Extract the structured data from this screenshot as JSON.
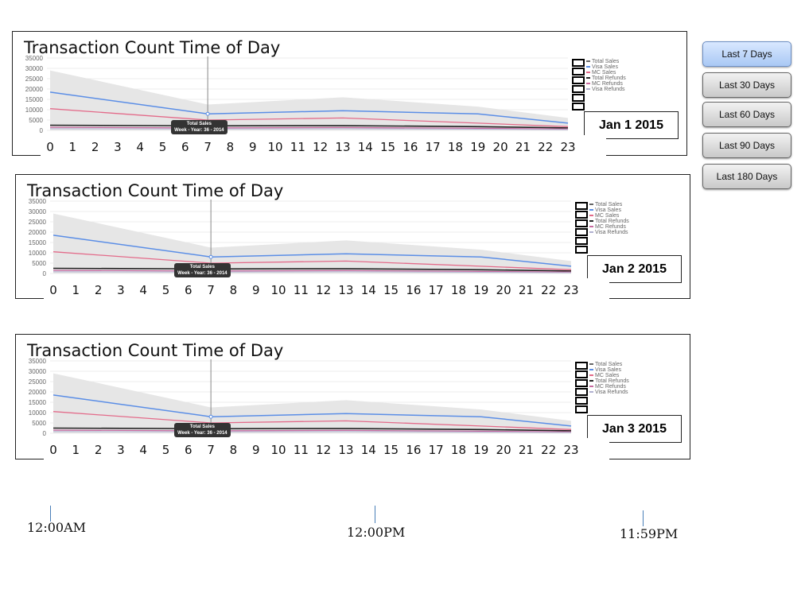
{
  "sidebar": {
    "buttons": [
      {
        "label": "Last 7 Days",
        "active": true
      },
      {
        "label": "Last 30 Days",
        "active": false
      },
      {
        "label": "Last 60 Days",
        "active": false
      },
      {
        "label": "Last 90 Days",
        "active": false
      },
      {
        "label": "Last 180  Days",
        "active": false
      }
    ]
  },
  "time_markers": {
    "start": "12:00AM",
    "mid": "12:00PM",
    "end": "11:59PM"
  },
  "colors": {
    "band": "#e6e6e6",
    "visa_sales": "#5b8ee6",
    "mc_sales": "#e36b8a",
    "total_refunds": "#222222",
    "mc_refunds": "#c86aa0",
    "visa_refunds": "#b0b0d0",
    "accent_button": "#a9c8f4"
  },
  "chart_data": [
    {
      "type": "area",
      "title": "Transaction Count Time of Day",
      "date_label": "Jan 1 2015",
      "x": [
        0,
        7,
        13,
        19,
        23
      ],
      "x_tick_labels": [
        "0",
        "1",
        "2",
        "3",
        "4",
        "5",
        "6",
        "7",
        "8",
        "9",
        "10",
        "11",
        "12",
        "13",
        "14",
        "15",
        "16",
        "17",
        "18",
        "19",
        "20",
        "21",
        "22",
        "23"
      ],
      "y_tick_labels": [
        "0",
        "5000",
        "10000",
        "15000",
        "20000",
        "25000",
        "30000",
        "35000"
      ],
      "ylim": [
        0,
        35000
      ],
      "legend": [
        "Total Sales",
        "Visa Sales",
        "MC Sales",
        "Total Refunds",
        "MC Refunds",
        "Visa Refunds"
      ],
      "legend_position": "right",
      "tooltip": {
        "x": 7,
        "title": "Total Sales",
        "subtitle": "Week - Year: 36 - 2014"
      },
      "series": [
        {
          "name": "Total Sales",
          "values": [
            29000,
            12500,
            16000,
            11500,
            6000
          ]
        },
        {
          "name": "Visa Sales",
          "values": [
            18500,
            8000,
            9500,
            8000,
            3500
          ]
        },
        {
          "name": "MC Sales",
          "values": [
            10500,
            5000,
            6000,
            3500,
            1800
          ]
        },
        {
          "name": "Total Refunds",
          "values": [
            2500,
            2200,
            2300,
            1800,
            1200
          ]
        },
        {
          "name": "MC Refunds",
          "values": [
            1500,
            1200,
            1400,
            1000,
            700
          ]
        },
        {
          "name": "Visa Refunds",
          "values": [
            800,
            700,
            800,
            600,
            400
          ]
        }
      ]
    },
    {
      "type": "area",
      "title": "Transaction Count Time of Day",
      "date_label": "Jan 2 2015",
      "x": [
        0,
        7,
        13,
        19,
        23
      ],
      "x_tick_labels": [
        "0",
        "1",
        "2",
        "3",
        "4",
        "5",
        "6",
        "7",
        "8",
        "9",
        "10",
        "11",
        "12",
        "13",
        "14",
        "15",
        "16",
        "17",
        "18",
        "19",
        "20",
        "21",
        "22",
        "23"
      ],
      "y_tick_labels": [
        "0",
        "5000",
        "10000",
        "15000",
        "20000",
        "25000",
        "30000",
        "35000"
      ],
      "ylim": [
        0,
        35000
      ],
      "legend": [
        "Total Sales",
        "Visa Sales",
        "MC Sales",
        "Total Refunds",
        "MC Refunds",
        "Visa Refunds"
      ],
      "legend_position": "right",
      "tooltip": {
        "x": 7,
        "title": "Total Sales",
        "subtitle": "Week - Year: 36 - 2014"
      },
      "series": [
        {
          "name": "Total Sales",
          "values": [
            29000,
            12500,
            16000,
            11500,
            6000
          ]
        },
        {
          "name": "Visa Sales",
          "values": [
            18500,
            8000,
            9500,
            8000,
            3500
          ]
        },
        {
          "name": "MC Sales",
          "values": [
            10500,
            5000,
            6000,
            3500,
            1800
          ]
        },
        {
          "name": "Total Refunds",
          "values": [
            2500,
            2200,
            2300,
            1800,
            1200
          ]
        },
        {
          "name": "MC Refunds",
          "values": [
            1500,
            1200,
            1400,
            1000,
            700
          ]
        },
        {
          "name": "Visa Refunds",
          "values": [
            800,
            700,
            800,
            600,
            400
          ]
        }
      ]
    },
    {
      "type": "area",
      "title": "Transaction Count Time of Day",
      "date_label": "Jan 3 2015",
      "x": [
        0,
        7,
        13,
        19,
        23
      ],
      "x_tick_labels": [
        "0",
        "1",
        "2",
        "3",
        "4",
        "5",
        "6",
        "7",
        "8",
        "9",
        "10",
        "11",
        "12",
        "13",
        "14",
        "15",
        "16",
        "17",
        "18",
        "19",
        "20",
        "21",
        "22",
        "23"
      ],
      "y_tick_labels": [
        "0",
        "5000",
        "10000",
        "15000",
        "20000",
        "25000",
        "30000",
        "35000"
      ],
      "ylim": [
        0,
        35000
      ],
      "legend": [
        "Total Sales",
        "Visa Sales",
        "MC Sales",
        "Total Refunds",
        "MC Refunds",
        "Visa Refunds"
      ],
      "legend_position": "right",
      "tooltip": {
        "x": 7,
        "title": "Total Sales",
        "subtitle": "Week - Year: 36 - 2014"
      },
      "series": [
        {
          "name": "Total Sales",
          "values": [
            29000,
            12500,
            16000,
            11500,
            6000
          ]
        },
        {
          "name": "Visa Sales",
          "values": [
            18500,
            8000,
            9500,
            8000,
            3500
          ]
        },
        {
          "name": "MC Sales",
          "values": [
            10500,
            5000,
            6000,
            3500,
            1800
          ]
        },
        {
          "name": "Total Refunds",
          "values": [
            2500,
            2200,
            2300,
            1800,
            1200
          ]
        },
        {
          "name": "MC Refunds",
          "values": [
            1500,
            1200,
            1400,
            1000,
            700
          ]
        },
        {
          "name": "Visa Refunds",
          "values": [
            800,
            700,
            800,
            600,
            400
          ]
        }
      ]
    }
  ]
}
